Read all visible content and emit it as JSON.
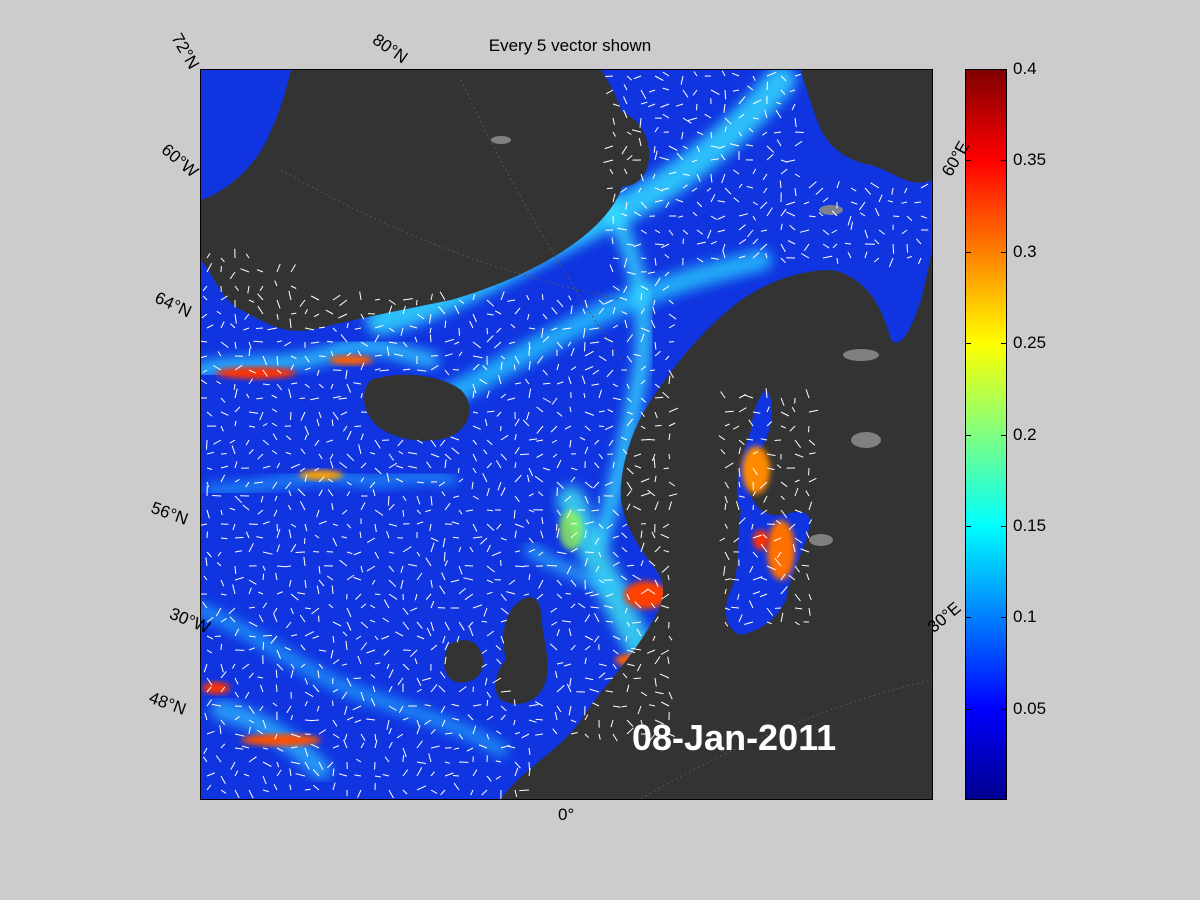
{
  "title": "Every 5 vector shown",
  "date_label": "08-Jan-2011",
  "colorbar": {
    "ticks": [
      "0.4",
      "0.35",
      "0.3",
      "0.25",
      "0.2",
      "0.15",
      "0.1",
      "0.05"
    ],
    "tick_values": [
      0.4,
      0.35,
      0.3,
      0.25,
      0.2,
      0.15,
      0.1,
      0.05
    ],
    "min": 0,
    "max": 0.4,
    "colormap": "jet"
  },
  "grid_labels": [
    {
      "text": "72°N",
      "name": "lat-72n-label"
    },
    {
      "text": "80°N",
      "name": "lat-80n-label"
    },
    {
      "text": "60°W",
      "name": "lon-60w-label"
    },
    {
      "text": "64°N",
      "name": "lat-64n-label"
    },
    {
      "text": "56°N",
      "name": "lat-56n-label"
    },
    {
      "text": "30°W",
      "name": "lon-30w-label"
    },
    {
      "text": "48°N",
      "name": "lat-48n-label"
    },
    {
      "text": "0°",
      "name": "lon-0-label"
    },
    {
      "text": "30°E",
      "name": "lon-30e-label"
    },
    {
      "text": "60°E",
      "name": "lon-60e-label"
    }
  ],
  "colors": {
    "ocean": "#1034e0",
    "land": "#333333",
    "ice": "#888888",
    "background": "#cccccc"
  }
}
